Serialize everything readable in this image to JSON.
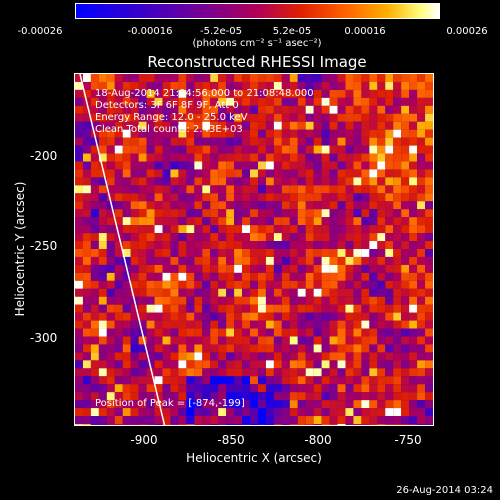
{
  "colorbar": {
    "ticks": [
      "-0.00026",
      "-0.00016",
      "-5.2e-05",
      "5.2e-05",
      "0.00016",
      "0.00026"
    ],
    "unit_label": "(photons cm⁻² s⁻¹ asec⁻²)"
  },
  "title": "Reconstructed RHESSI Image",
  "annotations": {
    "line1": "18-Aug-2014 21:04:56.000 to 21:08:48.000",
    "line2": "Detectors: 3F 6F 8F 9F, Att 0",
    "line3": "Energy Range: 12.0 - 25.0 keV",
    "line4": "Clean     Total counts: 2.43E+03",
    "peak": "Position of Peak = [-874,-199]"
  },
  "axes": {
    "xlabel": "Heliocentric X (arcsec)",
    "ylabel": "Heliocentric Y (arcsec)",
    "xticks": [
      "-900",
      "-850",
      "-800",
      "-750"
    ],
    "yticks": [
      "-200",
      "-250",
      "-300"
    ]
  },
  "timestamp": "26-Aug-2014 03:24"
}
